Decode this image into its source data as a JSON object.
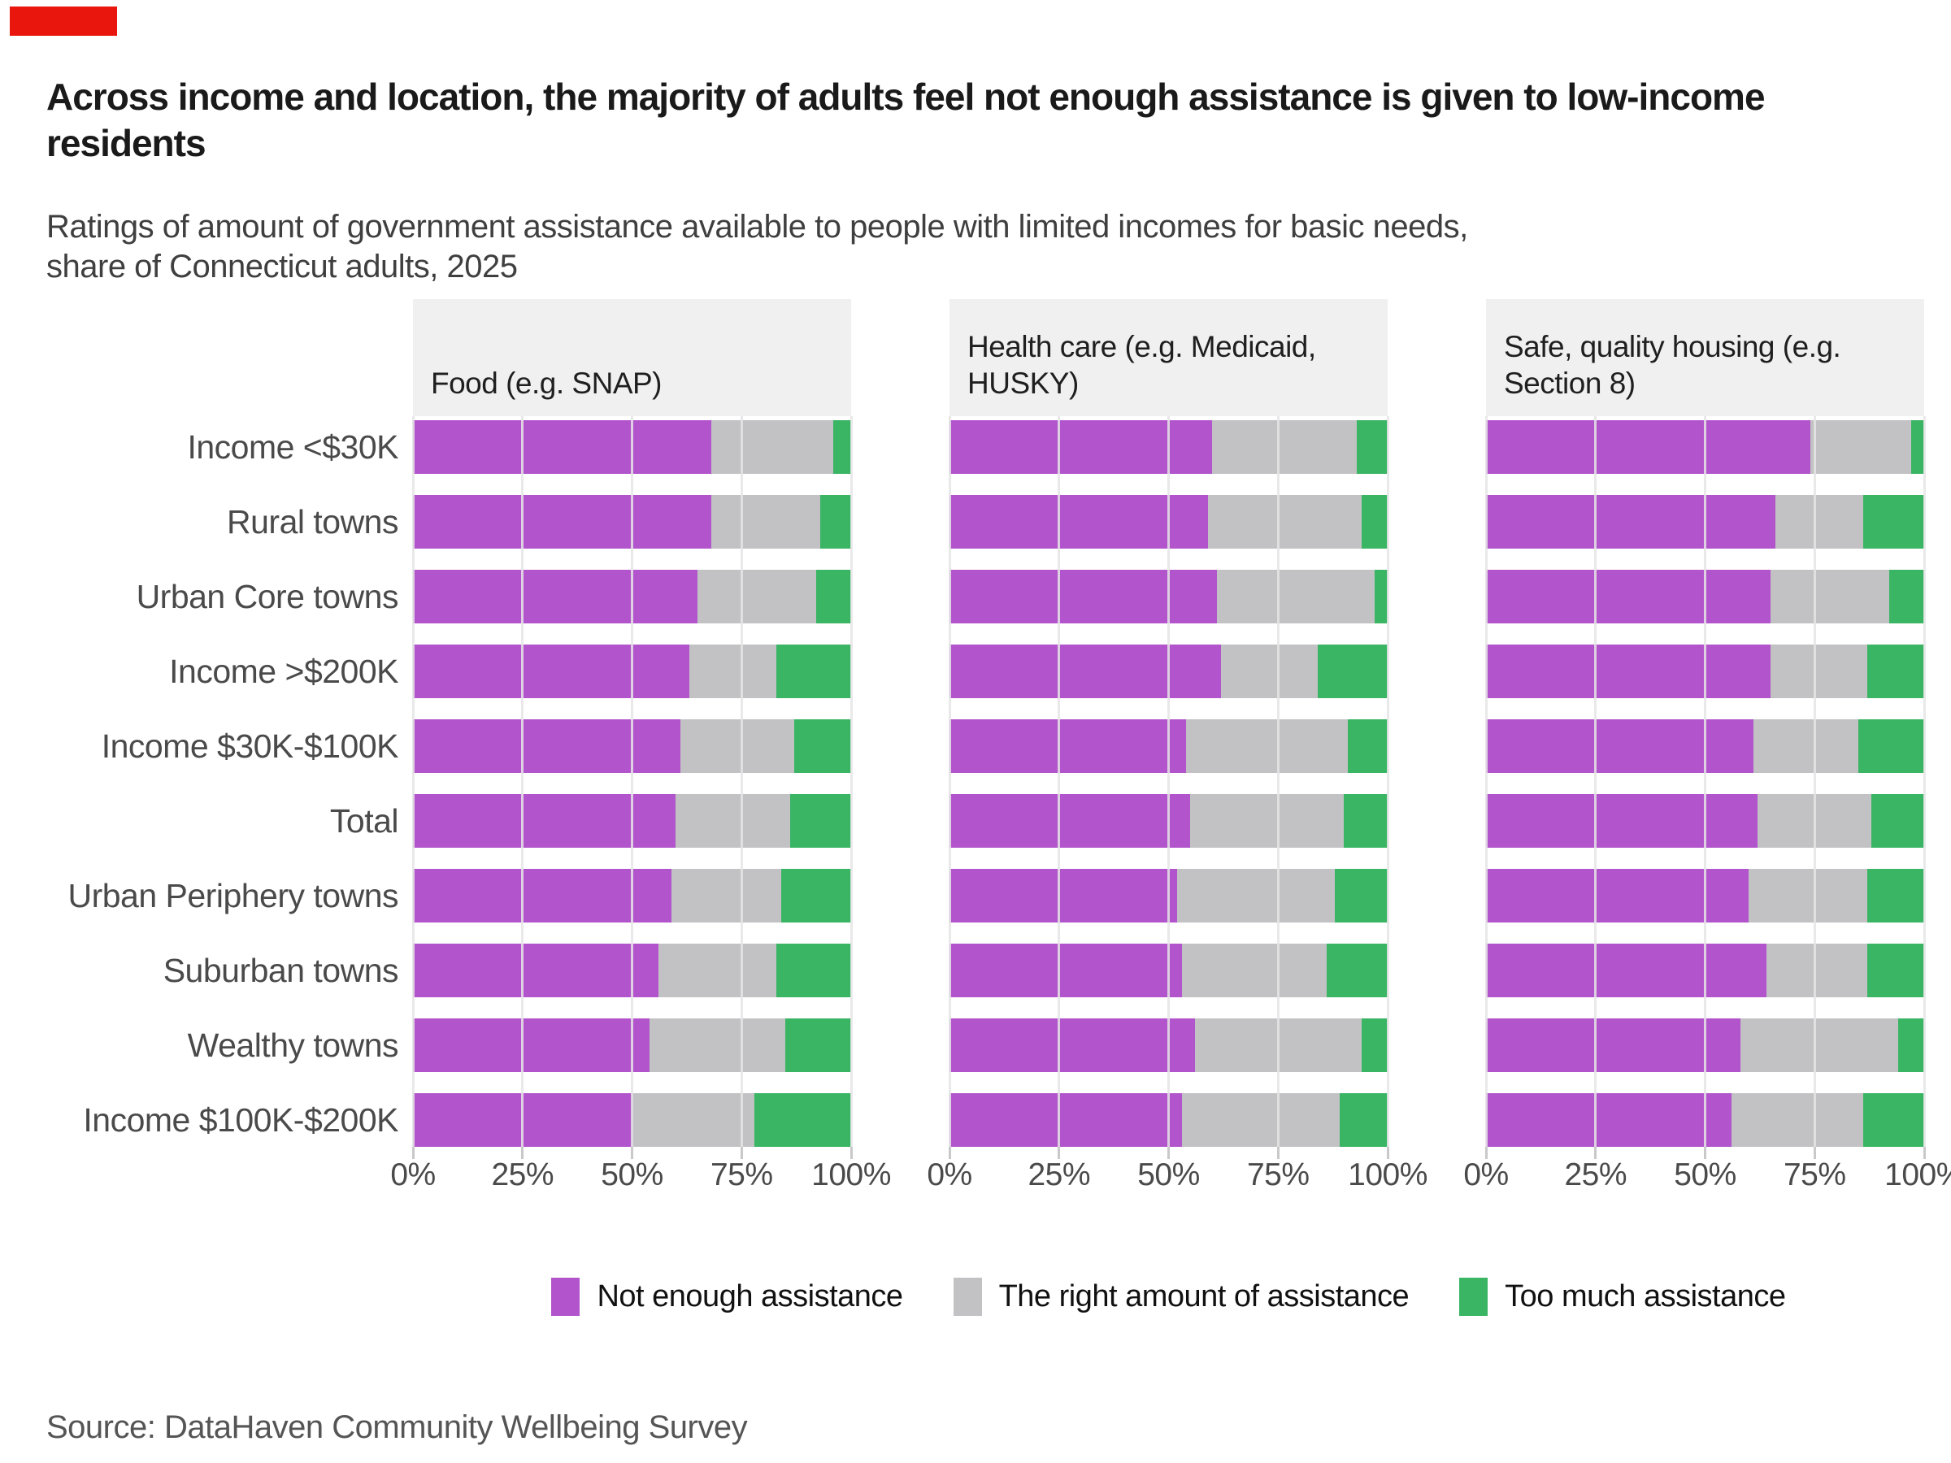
{
  "marker": {
    "note": "red annotation rectangle top-left",
    "color": "#e8160c"
  },
  "title": "Across income and location, the majority of adults feel not enough assistance is given to low-income residents",
  "subtitle": "Ratings of amount of government assistance available to people with limited incomes for basic needs, share of Connecticut adults, 2025",
  "source": "Source: DataHaven Community Wellbeing Survey",
  "x_axis": {
    "tick_labels": [
      "0%",
      "25%",
      "50%",
      "75%",
      "100%"
    ]
  },
  "legend": {
    "items": [
      {
        "label": "Not enough assistance",
        "color": "#b255cc"
      },
      {
        "label": "The right amount of assistance",
        "color": "#c2c2c4"
      },
      {
        "label": "Too much assistance",
        "color": "#3ab564"
      }
    ]
  },
  "chart_data": {
    "type": "bar",
    "orientation": "horizontal",
    "stacked": true,
    "unit": "percent of adults",
    "xlim": [
      0,
      100
    ],
    "x_ticks": [
      0,
      25,
      50,
      75,
      100
    ],
    "grid": true,
    "legend_position": "bottom",
    "categories": [
      "Income <$30K",
      "Rural towns",
      "Urban Core towns",
      "Income >$200K",
      "Income $30K-$100K",
      "Total",
      "Urban Periphery towns",
      "Suburban towns",
      "Wealthy towns",
      "Income $100K-$200K"
    ],
    "panels": [
      {
        "label": "Food (e.g. SNAP)",
        "series": [
          {
            "name": "Not enough assistance",
            "values": [
              68,
              68,
              65,
              63,
              61,
              60,
              59,
              56,
              54,
              50
            ]
          },
          {
            "name": "The right amount of assistance",
            "values": [
              28,
              25,
              27,
              20,
              26,
              26,
              25,
              27,
              31,
              28
            ]
          },
          {
            "name": "Too much assistance",
            "values": [
              4,
              7,
              8,
              17,
              13,
              14,
              16,
              17,
              15,
              22
            ]
          }
        ]
      },
      {
        "label": "Health care (e.g. Medicaid, HUSKY)",
        "series": [
          {
            "name": "Not enough assistance",
            "values": [
              60,
              59,
              61,
              62,
              54,
              55,
              52,
              53,
              56,
              53
            ]
          },
          {
            "name": "The right amount of assistance",
            "values": [
              33,
              35,
              36,
              22,
              37,
              35,
              36,
              33,
              38,
              36
            ]
          },
          {
            "name": "Too much assistance",
            "values": [
              7,
              6,
              3,
              16,
              9,
              10,
              12,
              14,
              6,
              11
            ]
          }
        ]
      },
      {
        "label": "Safe, quality housing (e.g. Section 8)",
        "series": [
          {
            "name": "Not enough assistance",
            "values": [
              74,
              66,
              65,
              65,
              61,
              62,
              60,
              64,
              58,
              56
            ]
          },
          {
            "name": "The right amount of assistance",
            "values": [
              23,
              20,
              27,
              22,
              24,
              26,
              27,
              23,
              36,
              30
            ]
          },
          {
            "name": "Too much assistance",
            "values": [
              3,
              14,
              8,
              13,
              15,
              12,
              13,
              13,
              6,
              14
            ]
          }
        ]
      }
    ]
  }
}
